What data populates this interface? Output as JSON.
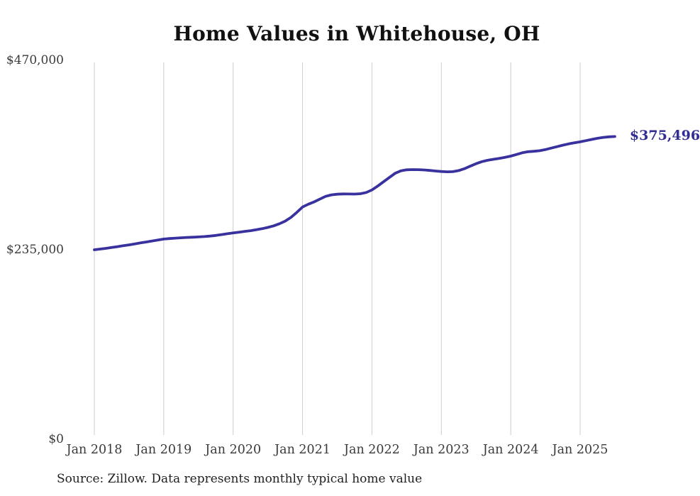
{
  "page": {
    "background": "#ffffff"
  },
  "chart_data": {
    "type": "line",
    "title": "Home Values in Whitehouse, OH",
    "source_note": "Source: Zillow. Data represents monthly typical home value",
    "legend": "none",
    "grid": "vertical-only",
    "ylim": [
      0,
      470000
    ],
    "y_ticks": [
      {
        "value": 470000,
        "label": "$470,000"
      },
      {
        "value": 235000,
        "label": "$235,000"
      },
      {
        "value": 0,
        "label": "$0"
      }
    ],
    "x_tick_labels": [
      "Jan 2018",
      "Jan 2019",
      "Jan 2020",
      "Jan 2021",
      "Jan 2022",
      "Jan 2023",
      "Jan 2024",
      "Jan 2025"
    ],
    "latest": {
      "label": "$375,496",
      "value": 375496
    },
    "series": [
      {
        "name": "Typical home value",
        "start": "Jan 2018",
        "end": "Jul 2025",
        "frequency": "monthly",
        "values": [
          235000,
          235900,
          236800,
          237800,
          238900,
          240000,
          241100,
          242300,
          243500,
          244700,
          245900,
          247100,
          248300,
          248900,
          249400,
          249900,
          250300,
          250600,
          250900,
          251400,
          252000,
          252800,
          253800,
          254900,
          255900,
          256800,
          257800,
          258700,
          259800,
          261100,
          262700,
          264700,
          267300,
          270600,
          275200,
          281300,
          288100,
          291500,
          294400,
          297800,
          301300,
          303100,
          303900,
          304300,
          304200,
          304100,
          304500,
          306000,
          309200,
          314000,
          319300,
          324600,
          329800,
          333000,
          334200,
          334500,
          334400,
          334000,
          333400,
          332700,
          332100,
          331700,
          331900,
          333200,
          335600,
          338800,
          341800,
          344300,
          346000,
          347200,
          348300,
          349700,
          351200,
          353200,
          355300,
          356600,
          357200,
          357900,
          359300,
          361100,
          362900,
          364700,
          366300,
          367600,
          368900,
          370400,
          371900,
          373300,
          374400,
          375100,
          375496
        ]
      }
    ],
    "colors": {
      "line": "#38319e",
      "value_label": "#322d93",
      "grid": "#cccccc",
      "axis_text": "#3a3a3a",
      "title_text": "#111111",
      "source_text": "#1f1f1f"
    }
  }
}
